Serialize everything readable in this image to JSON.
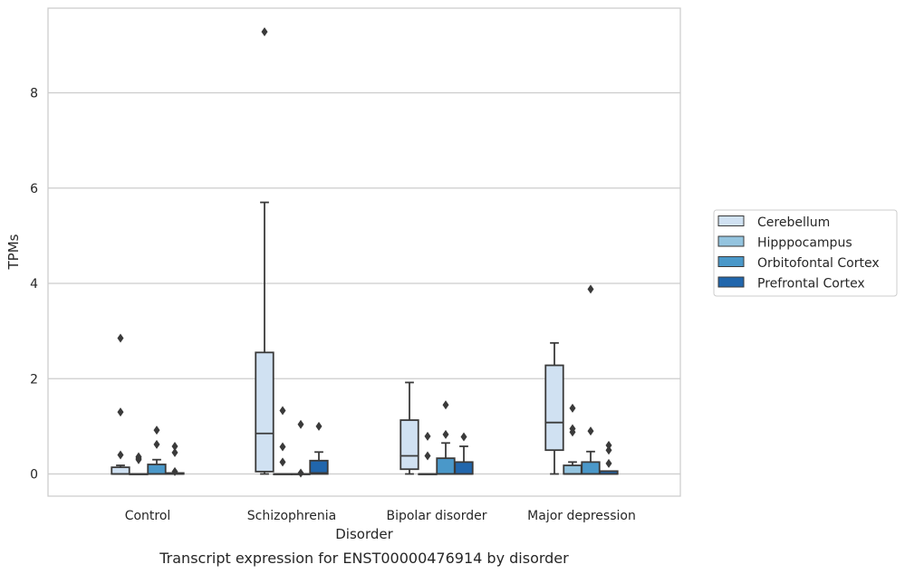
{
  "chart_data": {
    "type": "box",
    "title": "",
    "caption": "Transcript expression for ENST00000476914 by disorder",
    "xlabel": "Disorder",
    "ylabel": "TPMs",
    "ylim": [
      -0.45,
      9.8
    ],
    "yticks": [
      0,
      2,
      4,
      6,
      8
    ],
    "grid": "horizontal",
    "legend_position": "right",
    "categories": [
      "Control",
      "Schizophrenia",
      "Bipolar disorder",
      "Major depression"
    ],
    "series": [
      {
        "name": "Cerebellum",
        "color": "#d0e1f2",
        "boxes": [
          {
            "q1": 0.0,
            "median": 0.0,
            "q3": 0.14,
            "whisker_low": 0.0,
            "whisker_high": 0.18,
            "outliers": [
              0.4,
              1.3,
              2.85
            ]
          },
          {
            "q1": 0.05,
            "median": 0.85,
            "q3": 2.55,
            "whisker_low": 0.0,
            "whisker_high": 5.7,
            "outliers": [
              9.28
            ]
          },
          {
            "q1": 0.1,
            "median": 0.38,
            "q3": 1.13,
            "whisker_low": 0.0,
            "whisker_high": 1.92,
            "outliers": []
          },
          {
            "q1": 0.5,
            "median": 1.08,
            "q3": 2.28,
            "whisker_low": 0.0,
            "whisker_high": 2.75,
            "outliers": []
          }
        ]
      },
      {
        "name": "Hipppocampus",
        "color": "#94c4df",
        "boxes": [
          {
            "q1": 0.0,
            "median": 0.0,
            "q3": 0.0,
            "whisker_low": 0.0,
            "whisker_high": 0.0,
            "outliers": [
              0.3,
              0.33,
              0.36
            ]
          },
          {
            "q1": 0.0,
            "median": 0.0,
            "q3": 0.0,
            "whisker_low": 0.0,
            "whisker_high": 0.0,
            "outliers": [
              0.25,
              0.57,
              1.33
            ]
          },
          {
            "q1": 0.0,
            "median": 0.0,
            "q3": 0.0,
            "whisker_low": 0.0,
            "whisker_high": 0.0,
            "outliers": [
              0.38,
              0.79
            ]
          },
          {
            "q1": 0.0,
            "median": 0.0,
            "q3": 0.18,
            "whisker_low": 0.0,
            "whisker_high": 0.25,
            "outliers": [
              0.88,
              0.95,
              1.38
            ]
          }
        ]
      },
      {
        "name": "Orbitofontal Cortex",
        "color": "#4a98c9",
        "boxes": [
          {
            "q1": 0.0,
            "median": 0.0,
            "q3": 0.2,
            "whisker_low": 0.0,
            "whisker_high": 0.3,
            "outliers": [
              0.62,
              0.92
            ]
          },
          {
            "q1": 0.0,
            "median": 0.0,
            "q3": 0.0,
            "whisker_low": 0.0,
            "whisker_high": 0.0,
            "outliers": [
              0.02,
              1.04
            ]
          },
          {
            "q1": 0.0,
            "median": 0.0,
            "q3": 0.33,
            "whisker_low": 0.0,
            "whisker_high": 0.65,
            "outliers": [
              0.83,
              1.45
            ]
          },
          {
            "q1": 0.0,
            "median": 0.0,
            "q3": 0.25,
            "whisker_low": 0.0,
            "whisker_high": 0.47,
            "outliers": [
              0.9,
              3.88
            ]
          }
        ]
      },
      {
        "name": "Prefrontal Cortex",
        "color": "#2166ac",
        "boxes": [
          {
            "q1": 0.0,
            "median": 0.0,
            "q3": 0.02,
            "whisker_low": 0.0,
            "whisker_high": 0.02,
            "outliers": [
              0.05,
              0.45,
              0.58
            ]
          },
          {
            "q1": 0.0,
            "median": 0.02,
            "q3": 0.28,
            "whisker_low": 0.0,
            "whisker_high": 0.46,
            "outliers": [
              1.0
            ]
          },
          {
            "q1": 0.0,
            "median": 0.0,
            "q3": 0.25,
            "whisker_low": 0.0,
            "whisker_high": 0.58,
            "outliers": [
              0.78
            ]
          },
          {
            "q1": 0.0,
            "median": 0.0,
            "q3": 0.06,
            "whisker_low": 0.0,
            "whisker_high": 0.06,
            "outliers": [
              0.22,
              0.5,
              0.6
            ]
          }
        ]
      }
    ],
    "colors": {
      "grid": "#cccccc",
      "frame": "#cccccc",
      "line": "#3a3a3a",
      "text": "#262626"
    }
  }
}
